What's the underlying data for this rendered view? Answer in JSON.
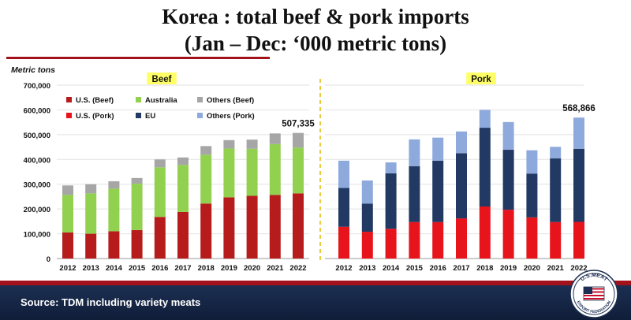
{
  "title": {
    "line1": "Korea : total beef  & pork imports",
    "line2": "(Jan – Dec: ‘000 metric tons)"
  },
  "source": "Source: TDM including variety meats",
  "logo": {
    "top_text": "U.S.MEAT",
    "bottom_text": "EXPORT FEDERATION"
  },
  "colors": {
    "us_beef": "#b71c1c",
    "australia": "#92d050",
    "others_beef": "#a6a6a6",
    "us_pork": "#e8141b",
    "eu": "#223a63",
    "others_pork": "#8eaadc"
  },
  "chart_data": {
    "type": "bar",
    "stacked": true,
    "ylabel": "Metric tons",
    "ylim": [
      0,
      700000
    ],
    "yticks": [
      "0",
      "100,000",
      "200,000",
      "300,000",
      "400,000",
      "500,000",
      "600,000",
      "700,000"
    ],
    "categories": [
      "2012",
      "2013",
      "2014",
      "2015",
      "2016",
      "2017",
      "2018",
      "2019",
      "2020",
      "2021",
      "2022"
    ],
    "legend": [
      {
        "label": "U.S. (Beef)",
        "key": "us_beef"
      },
      {
        "label": "Australia",
        "key": "australia"
      },
      {
        "label": "Others (Beef)",
        "key": "others_beef"
      },
      {
        "label": "U.S. (Pork)",
        "key": "us_pork"
      },
      {
        "label": "EU",
        "key": "eu"
      },
      {
        "label": "Others (Pork)",
        "key": "others_pork"
      }
    ],
    "panels": [
      {
        "title": "Beef",
        "annotation": {
          "text": "507,335",
          "index": 10
        },
        "series": [
          {
            "name": "U.S. (Beef)",
            "key": "us_beef",
            "values": [
              105000,
              100000,
              110000,
              115000,
              168000,
              188000,
              222000,
              247000,
              253000,
              257000,
              263000
            ]
          },
          {
            "name": "Australia",
            "key": "australia",
            "values": [
              152000,
              163000,
              172000,
              187000,
              200000,
              190000,
              197000,
              197000,
              190000,
              205000,
              185000
            ]
          },
          {
            "name": "Others (Beef)",
            "key": "others_beef",
            "values": [
              38000,
              37000,
              30000,
              23000,
              32000,
              30000,
              35000,
              34000,
              37000,
              43000,
              59000
            ]
          }
        ]
      },
      {
        "title": "Pork",
        "annotation": {
          "text": "568,866",
          "index": 10
        },
        "series": [
          {
            "name": "U.S. (Pork)",
            "key": "us_pork",
            "values": [
              128000,
              108000,
              120000,
              147000,
              147000,
              162000,
              210000,
              197000,
              166000,
              147000,
              148000
            ]
          },
          {
            "name": "EU",
            "key": "eu",
            "values": [
              157000,
              114000,
              224000,
              226000,
              248000,
              263000,
              318000,
              242000,
              177000,
              257000,
              295000
            ]
          },
          {
            "name": "Others (Pork)",
            "key": "others_pork",
            "values": [
              110000,
              93000,
              44000,
              108000,
              93000,
              88000,
              72000,
              112000,
              94000,
              47000,
              126000
            ]
          }
        ]
      }
    ]
  }
}
